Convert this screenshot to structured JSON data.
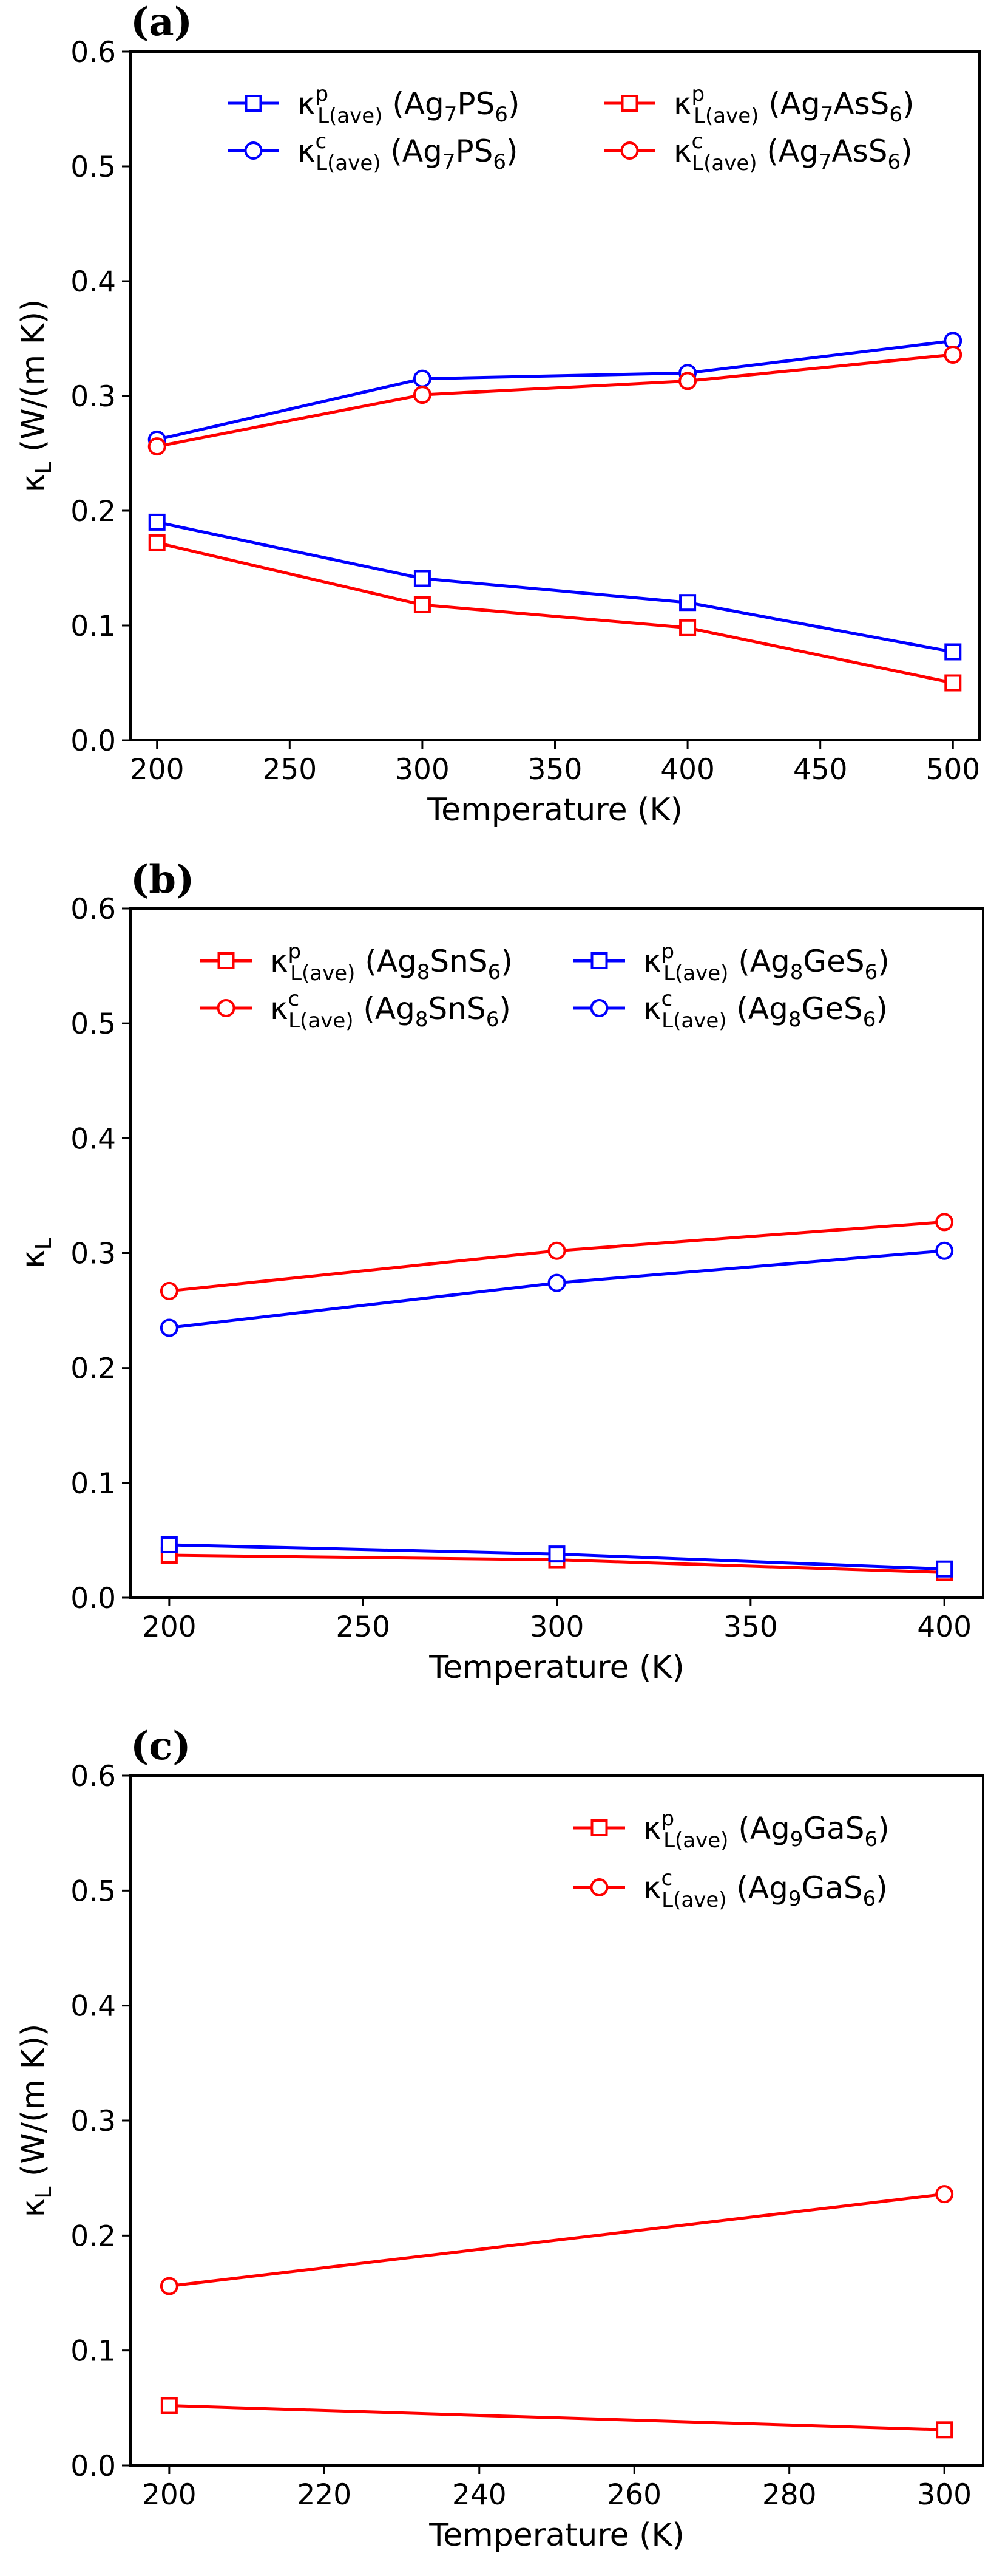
{
  "colors": {
    "red": "#ff0000",
    "blue": "#0000ff"
  },
  "chart_data": [
    {
      "type": "line",
      "panel_label": "(a)",
      "xlabel": "Temperature (K)",
      "ylabel": {
        "main": "κ",
        "sub": "L",
        "unit": " (W/(m K))"
      },
      "xlim": [
        190,
        510
      ],
      "ylim": [
        0,
        0.6
      ],
      "xticks": [
        "200",
        "250",
        "300",
        "350",
        "400",
        "450",
        "500"
      ],
      "yticks": [
        "0.0",
        "0.1",
        "0.2",
        "0.3",
        "0.4",
        "0.5",
        "0.6"
      ],
      "legend": {
        "location": "top",
        "columns": 2
      },
      "series": [
        {
          "name": "κ^p_L(ave) (Ag7PS6)",
          "symbol": "κ",
          "sup": "p",
          "sub": "L(ave)",
          "compound": "(Ag",
          "n": "7",
          "tail": "PS",
          "s": "6",
          "close": ")",
          "color_key": "blue",
          "marker": "square",
          "x": [
            200,
            300,
            400,
            500
          ],
          "y": [
            0.19,
            0.141,
            0.12,
            0.077
          ]
        },
        {
          "name": "κ^c_L(ave) (Ag7PS6)",
          "symbol": "κ",
          "sup": "c",
          "sub": "L(ave)",
          "compound": "(Ag",
          "n": "7",
          "tail": "PS",
          "s": "6",
          "close": ")",
          "color_key": "blue",
          "marker": "circle",
          "x": [
            200,
            300,
            400,
            500
          ],
          "y": [
            0.262,
            0.315,
            0.32,
            0.348
          ]
        },
        {
          "name": "κ^p_L(ave) (Ag7AsS6)",
          "symbol": "κ",
          "sup": "p",
          "sub": "L(ave)",
          "compound": "(Ag",
          "n": "7",
          "tail": "AsS",
          "s": "6",
          "close": ")",
          "color_key": "red",
          "marker": "square",
          "x": [
            200,
            300,
            400,
            500
          ],
          "y": [
            0.172,
            0.118,
            0.098,
            0.05
          ]
        },
        {
          "name": "κ^c_L(ave) (Ag7AsS6)",
          "symbol": "κ",
          "sup": "c",
          "sub": "L(ave)",
          "compound": "(Ag",
          "n": "7",
          "tail": "AsS",
          "s": "6",
          "close": ")",
          "color_key": "red",
          "marker": "circle",
          "x": [
            200,
            300,
            400,
            500
          ],
          "y": [
            0.256,
            0.301,
            0.313,
            0.336
          ]
        }
      ]
    },
    {
      "type": "line",
      "panel_label": "(b)",
      "xlabel": "Temperature (K)",
      "ylabel": {
        "main": "κ",
        "sub": "L",
        "unit": ""
      },
      "xlim": [
        190,
        410
      ],
      "ylim": [
        0,
        0.6
      ],
      "xticks": [
        "200",
        "250",
        "300",
        "350",
        "400"
      ],
      "yticks": [
        "0.0",
        "0.1",
        "0.2",
        "0.3",
        "0.4",
        "0.5",
        "0.6"
      ],
      "legend": {
        "location": "top",
        "columns": 2
      },
      "series": [
        {
          "name": "κ^p_L(ave) (Ag8SnS6)",
          "symbol": "κ",
          "sup": "p",
          "sub": "L(ave)",
          "compound": "(Ag",
          "n": "8",
          "tail": "SnS",
          "s": "6",
          "close": ")",
          "color_key": "red",
          "marker": "square",
          "x": [
            200,
            300,
            400
          ],
          "y": [
            0.037,
            0.033,
            0.022
          ]
        },
        {
          "name": "κ^c_L(ave) (Ag8SnS6)",
          "symbol": "κ",
          "sup": "c",
          "sub": "L(ave)",
          "compound": "(Ag",
          "n": "8",
          "tail": "SnS",
          "s": "6",
          "close": ")",
          "color_key": "red",
          "marker": "circle",
          "x": [
            200,
            300,
            400
          ],
          "y": [
            0.267,
            0.302,
            0.327
          ]
        },
        {
          "name": "κ^p_L(ave) (Ag8GeS6)",
          "symbol": "κ",
          "sup": "p",
          "sub": "L(ave)",
          "compound": "(Ag",
          "n": "8",
          "tail": "GeS",
          "s": "6",
          "close": ")",
          "color_key": "blue",
          "marker": "square",
          "x": [
            200,
            300,
            400
          ],
          "y": [
            0.046,
            0.038,
            0.025
          ]
        },
        {
          "name": "κ^c_L(ave) (Ag8GeS6)",
          "symbol": "κ",
          "sup": "c",
          "sub": "L(ave)",
          "compound": "(Ag",
          "n": "8",
          "tail": "GeS",
          "s": "6",
          "close": ")",
          "color_key": "blue",
          "marker": "circle",
          "x": [
            200,
            300,
            400
          ],
          "y": [
            0.235,
            0.274,
            0.302
          ]
        }
      ]
    },
    {
      "type": "line",
      "panel_label": "(c)",
      "xlabel": "Temperature (K)",
      "ylabel": {
        "main": "κ",
        "sub": "L",
        "unit": " (W/(m K))"
      },
      "xlim": [
        195,
        305
      ],
      "ylim": [
        0,
        0.6
      ],
      "xticks": [
        "200",
        "220",
        "240",
        "260",
        "280",
        "300"
      ],
      "yticks": [
        "0.0",
        "0.1",
        "0.2",
        "0.3",
        "0.4",
        "0.5",
        "0.6"
      ],
      "legend": {
        "location": "top-right",
        "columns": 1
      },
      "series": [
        {
          "name": "κ^p_L(ave) (Ag9GaS6)",
          "symbol": "κ",
          "sup": "p",
          "sub": "L(ave)",
          "compound": "(Ag",
          "n": "9",
          "tail": "GaS",
          "s": "6",
          "close": ")",
          "color_key": "red",
          "marker": "square",
          "x": [
            200,
            300
          ],
          "y": [
            0.052,
            0.031
          ]
        },
        {
          "name": "κ^c_L(ave) (Ag9GaS6)",
          "symbol": "κ",
          "sup": "c",
          "sub": "L(ave)",
          "compound": "(Ag",
          "n": "9",
          "tail": "GaS",
          "s": "6",
          "close": ")",
          "color_key": "red",
          "marker": "circle",
          "x": [
            200,
            300
          ],
          "y": [
            0.156,
            0.236
          ]
        }
      ]
    }
  ]
}
